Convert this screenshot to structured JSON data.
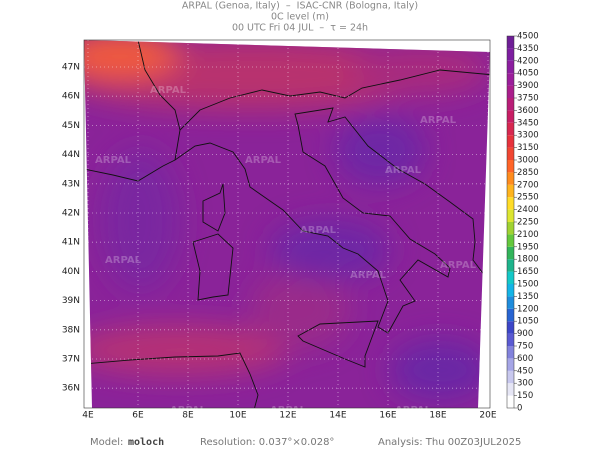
{
  "header": {
    "line1": "ARPAL (Genoa, Italy)  –  ISAC-CNR (Bologna, Italy)",
    "line2": "0C level (m)",
    "line3": "00 UTC Fri 04 JUL  –  τ = 24h"
  },
  "map": {
    "watermark": "ARPAL",
    "lat_ticks": [
      {
        "value": 36,
        "label": "36N"
      },
      {
        "value": 37,
        "label": "37N"
      },
      {
        "value": 38,
        "label": "38N"
      },
      {
        "value": 39,
        "label": "39N"
      },
      {
        "value": 40,
        "label": "40N"
      },
      {
        "value": 41,
        "label": "41N"
      },
      {
        "value": 42,
        "label": "42N"
      },
      {
        "value": 43,
        "label": "43N"
      },
      {
        "value": 44,
        "label": "44N"
      },
      {
        "value": 45,
        "label": "45N"
      },
      {
        "value": 46,
        "label": "46N"
      },
      {
        "value": 47,
        "label": "47N"
      }
    ],
    "lon_ticks": [
      {
        "value": 4,
        "label": "4E"
      },
      {
        "value": 6,
        "label": "6E"
      },
      {
        "value": 8,
        "label": "8E"
      },
      {
        "value": 10,
        "label": "10E"
      },
      {
        "value": 12,
        "label": "12E"
      },
      {
        "value": 14,
        "label": "14E"
      },
      {
        "value": 16,
        "label": "16E"
      },
      {
        "value": 18,
        "label": "18E"
      },
      {
        "value": 20,
        "label": "20E"
      }
    ]
  },
  "colorbar": {
    "ticks": [
      0,
      150,
      300,
      450,
      600,
      750,
      900,
      1050,
      1200,
      1350,
      1500,
      1650,
      1800,
      1950,
      2100,
      2250,
      2400,
      2550,
      2700,
      2850,
      3000,
      3150,
      3300,
      3450,
      3600,
      3750,
      3900,
      4050,
      4200,
      4350,
      4500
    ],
    "colors": [
      "#ffffff",
      "#e6e6f5",
      "#c8c8ee",
      "#a5a5e6",
      "#8282dc",
      "#5a5ad2",
      "#3c46c8",
      "#2864d2",
      "#1e8cdc",
      "#14b4e6",
      "#14c8c8",
      "#1eb48c",
      "#32b45a",
      "#64c83c",
      "#a0d232",
      "#dce632",
      "#ffdc28",
      "#ffb41e",
      "#ff8c1e",
      "#ff6428",
      "#f04632",
      "#e6323c",
      "#d72850",
      "#c81e64",
      "#b91e78",
      "#aa1e8c",
      "#9b1e9b",
      "#8c1ea0",
      "#7d1ea0",
      "#6e1e96"
    ]
  },
  "footer": {
    "model_label": "Model:",
    "model": "moloch",
    "resolution": "Resolution: 0.037°×0.028°",
    "analysis": "Analysis: Thu 00Z03JUL2025"
  }
}
